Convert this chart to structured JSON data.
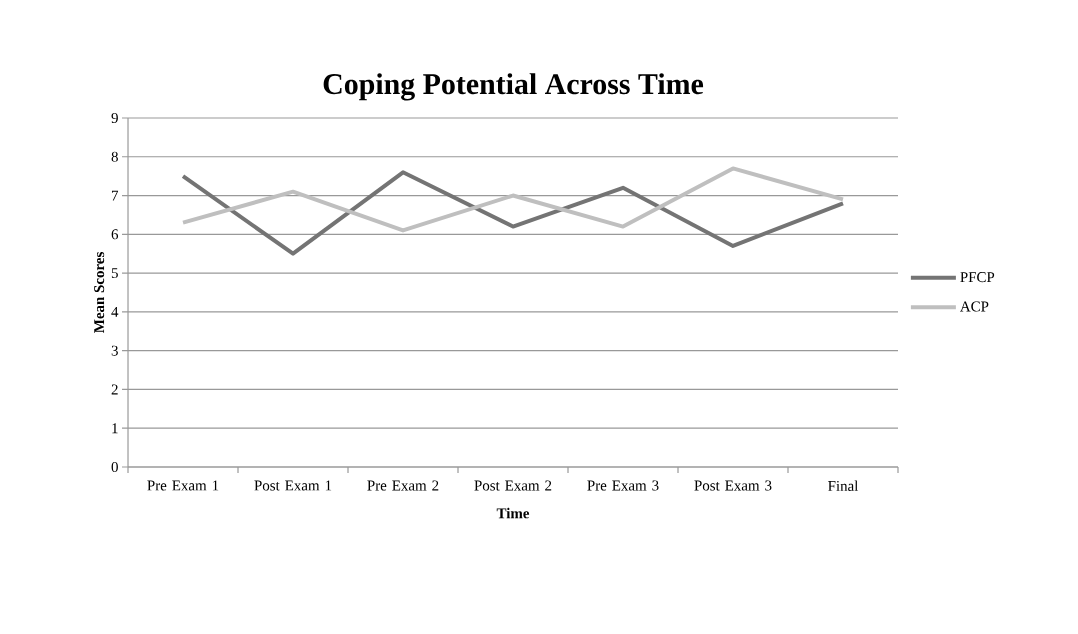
{
  "chart_data": {
    "type": "line",
    "title": "Coping Potential Across Time",
    "xlabel": "Time",
    "ylabel": "Mean Scores",
    "categories": [
      "Pre Exam 1",
      "Post Exam 1",
      "Pre Exam 2",
      "Post Exam 2",
      "Pre Exam 3",
      "Post Exam 3",
      "Final"
    ],
    "series": [
      {
        "name": "PFCP",
        "color": "#747474",
        "values": [
          7.5,
          5.5,
          7.6,
          6.2,
          7.2,
          5.7,
          6.8
        ]
      },
      {
        "name": "ACP",
        "color": "#bfbfbf",
        "values": [
          6.3,
          7.1,
          6.1,
          7.0,
          6.2,
          7.7,
          6.9
        ]
      }
    ],
    "ylim": [
      0,
      9
    ],
    "yticks": [
      0,
      1,
      2,
      3,
      4,
      5,
      6,
      7,
      8,
      9
    ],
    "grid": "y",
    "legend": "right"
  }
}
